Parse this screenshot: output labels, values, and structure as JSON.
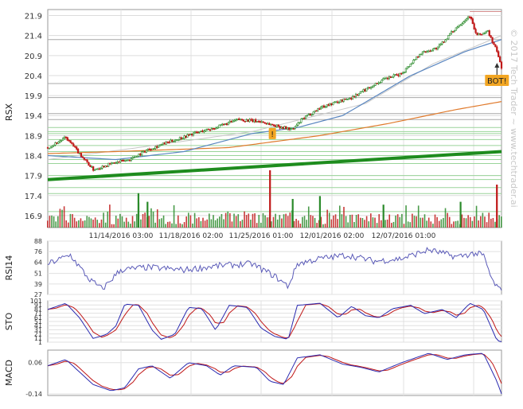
{
  "watermark": "© 2017 Tech Trader ~ www.techtrader.ai",
  "colors": {
    "up": "#2a8a2a",
    "down": "#c01818",
    "grid": "#b8b8b8",
    "trend": "#1e8c1e",
    "support": "#9ad49a",
    "sma_blue": "#5a86c0",
    "sma_orange": "#e07a2c",
    "sma_gray": "#c8c8c8",
    "rsi": "#5a5ab8",
    "fast": "#2a2ab0",
    "slow": "#c01818",
    "signal": "#f2a623"
  },
  "chart_data": [
    {
      "type": "candlestick",
      "name": "price",
      "ylabel": "RSX",
      "yticks": [
        16.9,
        17.4,
        17.9,
        18.4,
        18.9,
        19.4,
        19.9,
        20.4,
        20.9,
        21.4,
        21.9
      ],
      "ylim": [
        16.6,
        22.05
      ],
      "xticks": [
        "11/14/2016 03:00",
        "11/18/2016 02:00",
        "11/25/2016 01:00",
        "12/01/2016 02:00",
        "12/07/2016 01:00"
      ],
      "x_range": [
        "11/10/2016",
        "12/10/2016"
      ],
      "anchor_path": [
        [
          0,
          18.6
        ],
        [
          0.04,
          18.85
        ],
        [
          0.07,
          18.45
        ],
        [
          0.1,
          18.05
        ],
        [
          0.14,
          18.2
        ],
        [
          0.18,
          18.3
        ],
        [
          0.22,
          18.55
        ],
        [
          0.27,
          18.75
        ],
        [
          0.32,
          18.95
        ],
        [
          0.37,
          19.1
        ],
        [
          0.42,
          19.3
        ],
        [
          0.47,
          19.25
        ],
        [
          0.5,
          19.15
        ],
        [
          0.54,
          19.05
        ],
        [
          0.56,
          19.3
        ],
        [
          0.6,
          19.6
        ],
        [
          0.64,
          19.75
        ],
        [
          0.67,
          19.85
        ],
        [
          0.7,
          20.05
        ],
        [
          0.74,
          20.3
        ],
        [
          0.78,
          20.45
        ],
        [
          0.82,
          20.95
        ],
        [
          0.86,
          21.1
        ],
        [
          0.9,
          21.6
        ],
        [
          0.93,
          21.9
        ],
        [
          0.945,
          21.4
        ],
        [
          0.97,
          21.5
        ],
        [
          0.99,
          21.0
        ],
        [
          1.0,
          20.6
        ]
      ],
      "lines": {
        "trend": [
          [
            0,
            17.8
          ],
          [
            1,
            18.5
          ]
        ],
        "sma_orange": [
          [
            0,
            18.45
          ],
          [
            0.15,
            18.5
          ],
          [
            0.4,
            18.6
          ],
          [
            0.6,
            18.9
          ],
          [
            0.75,
            19.2
          ],
          [
            0.9,
            19.55
          ],
          [
            1,
            19.75
          ]
        ],
        "sma_blue": [
          [
            0,
            18.4
          ],
          [
            0.15,
            18.3
          ],
          [
            0.3,
            18.5
          ],
          [
            0.45,
            18.95
          ],
          [
            0.55,
            19.1
          ],
          [
            0.65,
            19.4
          ],
          [
            0.8,
            20.4
          ],
          [
            0.92,
            21.0
          ],
          [
            1,
            21.3
          ]
        ],
        "sma_gray": [
          [
            0,
            18.3
          ],
          [
            0.2,
            18.6
          ],
          [
            0.45,
            19.0
          ],
          [
            0.7,
            19.7
          ],
          [
            0.85,
            20.7
          ],
          [
            1,
            21.4
          ]
        ],
        "resistance": [
          [
            0.93,
            22.0
          ],
          [
            1,
            22.0
          ]
        ]
      },
      "support_levels": [
        19.0,
        19.1,
        18.95,
        18.8,
        18.65,
        18.5,
        18.4,
        18.3,
        18.2,
        17.9,
        17.8,
        17.6,
        17.45,
        17.0
      ],
      "gray_levels": [
        20.2,
        19.85,
        19.45,
        19.3,
        21.3
      ],
      "volume": {
        "spikes": [
          [
            0.49,
            1.0,
            "down"
          ],
          [
            0.54,
            0.5,
            "up"
          ],
          [
            0.2,
            0.6,
            "up"
          ],
          [
            0.22,
            0.45,
            "up"
          ],
          [
            0.91,
            0.45,
            "up"
          ],
          [
            0.99,
            0.75,
            "down"
          ],
          [
            0.74,
            0.4,
            "up"
          ],
          [
            0.6,
            0.55,
            "up"
          ]
        ]
      },
      "signals": [
        {
          "label": "!",
          "x": 0.495,
          "y": 18.95
        },
        {
          "label": "BOT!",
          "x": 0.99,
          "y": 20.28
        }
      ]
    },
    {
      "type": "line",
      "name": "rsi",
      "ylabel": "RSI14",
      "yticks": [
        27,
        39,
        51,
        64,
        76,
        88
      ],
      "ylim": [
        27,
        88
      ],
      "anchors": [
        [
          0,
          62
        ],
        [
          0.05,
          72
        ],
        [
          0.09,
          45
        ],
        [
          0.12,
          33
        ],
        [
          0.16,
          55
        ],
        [
          0.22,
          58
        ],
        [
          0.3,
          55
        ],
        [
          0.38,
          60
        ],
        [
          0.45,
          62
        ],
        [
          0.5,
          48
        ],
        [
          0.53,
          36
        ],
        [
          0.55,
          62
        ],
        [
          0.6,
          68
        ],
        [
          0.66,
          72
        ],
        [
          0.72,
          65
        ],
        [
          0.78,
          68
        ],
        [
          0.84,
          78
        ],
        [
          0.9,
          70
        ],
        [
          0.94,
          74
        ],
        [
          0.96,
          72
        ],
        [
          0.98,
          42
        ],
        [
          1,
          30
        ]
      ]
    },
    {
      "type": "line",
      "name": "sto",
      "ylabel": "STO",
      "yticks": [
        1,
        11,
        21,
        31,
        41,
        51,
        61,
        71,
        81,
        91,
        101
      ],
      "ylim": [
        1,
        101
      ],
      "anchors": [
        [
          0,
          80
        ],
        [
          0.04,
          95
        ],
        [
          0.07,
          60
        ],
        [
          0.1,
          10
        ],
        [
          0.13,
          20
        ],
        [
          0.15,
          40
        ],
        [
          0.17,
          93
        ],
        [
          0.2,
          90
        ],
        [
          0.23,
          30
        ],
        [
          0.25,
          8
        ],
        [
          0.28,
          20
        ],
        [
          0.31,
          85
        ],
        [
          0.34,
          82
        ],
        [
          0.37,
          30
        ],
        [
          0.4,
          90
        ],
        [
          0.44,
          85
        ],
        [
          0.47,
          35
        ],
        [
          0.5,
          15
        ],
        [
          0.53,
          8
        ],
        [
          0.55,
          90
        ],
        [
          0.6,
          95
        ],
        [
          0.64,
          60
        ],
        [
          0.67,
          88
        ],
        [
          0.7,
          65
        ],
        [
          0.73,
          60
        ],
        [
          0.76,
          82
        ],
        [
          0.8,
          90
        ],
        [
          0.83,
          70
        ],
        [
          0.87,
          80
        ],
        [
          0.9,
          60
        ],
        [
          0.93,
          95
        ],
        [
          0.96,
          80
        ],
        [
          0.99,
          5
        ],
        [
          1,
          2
        ]
      ]
    },
    {
      "type": "line",
      "name": "macd",
      "ylabel": "MACD",
      "yticks": [
        -0.14,
        0.06
      ],
      "ylim": [
        -0.15,
        0.14
      ],
      "anchors": [
        [
          0,
          0.04
        ],
        [
          0.04,
          0.08
        ],
        [
          0.07,
          0.0
        ],
        [
          0.1,
          -0.08
        ],
        [
          0.14,
          -0.12
        ],
        [
          0.17,
          -0.1
        ],
        [
          0.2,
          0.02
        ],
        [
          0.23,
          0.04
        ],
        [
          0.27,
          -0.04
        ],
        [
          0.31,
          0.06
        ],
        [
          0.35,
          0.04
        ],
        [
          0.38,
          -0.02
        ],
        [
          0.41,
          0.04
        ],
        [
          0.46,
          0.03
        ],
        [
          0.49,
          -0.06
        ],
        [
          0.52,
          -0.08
        ],
        [
          0.55,
          0.09
        ],
        [
          0.6,
          0.11
        ],
        [
          0.65,
          0.05
        ],
        [
          0.69,
          0.03
        ],
        [
          0.73,
          0.0
        ],
        [
          0.78,
          0.06
        ],
        [
          0.84,
          0.12
        ],
        [
          0.88,
          0.08
        ],
        [
          0.92,
          0.11
        ],
        [
          0.96,
          0.12
        ],
        [
          0.99,
          -0.06
        ],
        [
          1,
          -0.14
        ]
      ]
    }
  ]
}
